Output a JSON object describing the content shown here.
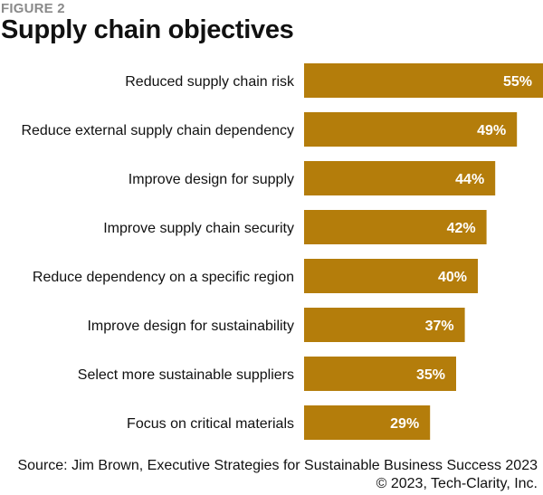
{
  "figure_label": "FIGURE 2",
  "title": "Supply chain objectives",
  "source": "Source: Jim Brown, Executive Strategies for Sustainable Business Success 2023",
  "copyright": "© 2023, Tech-Clarity, Inc.",
  "colors": {
    "bar": "#b47d0b",
    "label": "#ffffff",
    "text": "#111111"
  },
  "chart_data": {
    "type": "bar",
    "orientation": "horizontal",
    "title": "Supply chain objectives",
    "xlabel": "",
    "ylabel": "",
    "grid": false,
    "categories": [
      "Reduced supply chain risk",
      "Reduce external supply chain dependency",
      "Improve design for supply",
      "Improve supply chain security",
      "Reduce dependency on a specific region",
      "Improve design for sustainability",
      "Select more sustainable suppliers",
      "Focus on critical materials"
    ],
    "values": [
      55,
      49,
      44,
      42,
      40,
      37,
      35,
      29
    ],
    "unit": "%",
    "xlim": [
      0,
      55
    ]
  }
}
